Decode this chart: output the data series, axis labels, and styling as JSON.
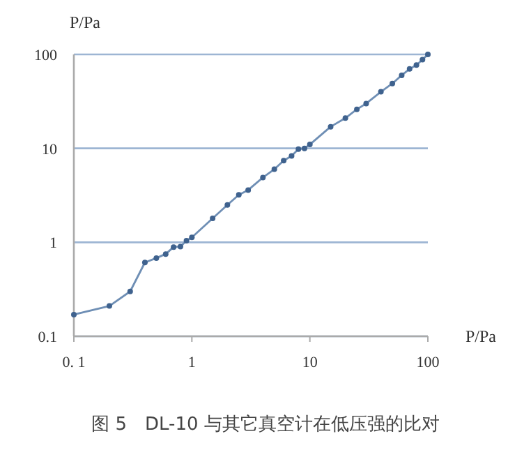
{
  "chart_data": {
    "type": "line",
    "xlabel": "P/Pa",
    "ylabel": "P/Pa",
    "log": "xy",
    "xlim": [
      0.1,
      100
    ],
    "ylim": [
      0.1,
      100
    ],
    "xticks": [
      {
        "value": 0.1,
        "label": "0. 1"
      },
      1,
      10,
      100
    ],
    "yticks": [
      0.1,
      1,
      10,
      100
    ],
    "grid": "y",
    "marker": "circle",
    "line_style": "solid",
    "series": [
      {
        "color": "#6f8fb5",
        "x": [
          0.1,
          0.2,
          0.3,
          0.4,
          0.5,
          0.6,
          0.7,
          0.8,
          0.9,
          1,
          1.5,
          2,
          2.5,
          3,
          4,
          5,
          6,
          7,
          8,
          9,
          10,
          15,
          20,
          25,
          30,
          40,
          50,
          60,
          70,
          80,
          90,
          100
        ],
        "values": [
          0.17,
          0.21,
          0.3,
          0.61,
          0.68,
          0.75,
          0.89,
          0.9,
          1.04,
          1.13,
          1.8,
          2.5,
          3.2,
          3.6,
          4.9,
          6,
          7.4,
          8.3,
          9.8,
          10,
          11,
          17,
          21,
          26,
          30,
          40,
          49,
          60,
          70,
          77,
          88,
          100
        ]
      }
    ],
    "annotations": [
      "图 5　DL-10 与其它真空计在低压强的比对"
    ]
  }
}
